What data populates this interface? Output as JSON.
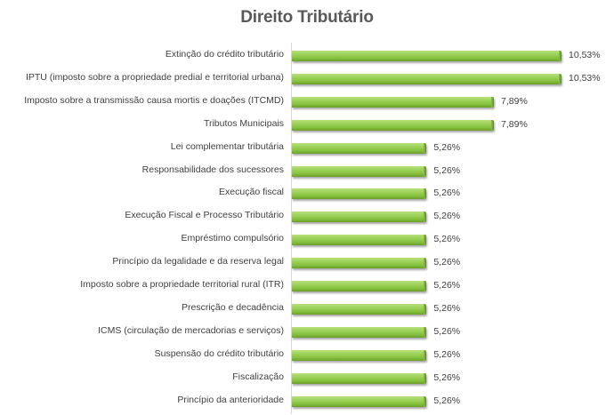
{
  "chart_data": {
    "type": "bar",
    "orientation": "horizontal",
    "title": "Direito Tributário",
    "xlabel": "",
    "ylabel": "",
    "grid": false,
    "legend": null,
    "categories": [
      "Extinção do crédito tributário",
      "IPTU (imposto sobre a propriedade predial e territorial urbana)",
      "Imposto sobre a transmissão causa mortis e doações (ITCMD)",
      "Tributos Municipais",
      "Lei complementar tributária",
      "Responsabilidade dos sucessores",
      "Execução fiscal",
      "Execução Fiscal e Processo Tributário",
      "Empréstimo compulsório",
      "Princípio da legalidade e da reserva legal",
      "Imposto sobre a propriedade territorial rural (ITR)",
      "Prescrição e decadência",
      "ICMS (circulação de mercadorias e serviços)",
      "Suspensão do crédito tributário",
      "Fiscalização",
      "Princípio da anterioridade"
    ],
    "values": [
      10.53,
      10.53,
      7.89,
      7.89,
      5.26,
      5.26,
      5.26,
      5.26,
      5.26,
      5.26,
      5.26,
      5.26,
      5.26,
      5.26,
      5.26,
      5.26
    ],
    "value_labels": [
      "10,53%",
      "10,53%",
      "7,89%",
      "7,89%",
      "5,26%",
      "5,26%",
      "5,26%",
      "5,26%",
      "5,26%",
      "5,26%",
      "5,26%",
      "5,26%",
      "5,26%",
      "5,26%",
      "5,26%",
      "5,26%"
    ],
    "bar_color": "#8cc63f"
  }
}
